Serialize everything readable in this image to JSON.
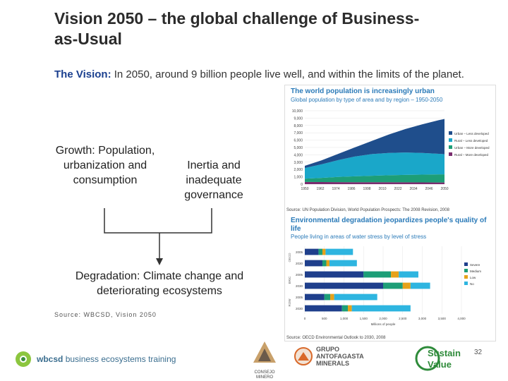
{
  "title": "Vision 2050 – the global challenge of Business-as-Usual",
  "vision": {
    "lead": "The Vision:",
    "text": " In 2050, around 9 billion people live well, and within the limits of the planet."
  },
  "diagram": {
    "growth": "Growth: Population, urbanization and consumption",
    "inertia": "Inertia and inadequate governance",
    "degradation": "Degradation: Climate change and deteriorating ecosystems"
  },
  "source_left": "Source: WBCSD, Vision 2050",
  "chart_urban": {
    "title": "The world population is increasingly urban",
    "subtitle": "Global population by type of area and by region – 1950-2050",
    "y_ticks": [
      "10,000",
      "9,000",
      "8,000",
      "7,000",
      "6,000",
      "5,000",
      "4,000",
      "3,000",
      "2,000",
      "1,000",
      "0"
    ],
    "x_ticks": [
      "1950",
      "1962",
      "1974",
      "1986",
      "1998",
      "2010",
      "2022",
      "2034",
      "2046",
      "2050"
    ],
    "legend": [
      "Urban – Less developed",
      "Rural – Less developed",
      "Urban – More developed",
      "Rural – More developed"
    ],
    "colors": [
      "#1f4e8c",
      "#1aa7c9",
      "#1d9e77",
      "#7a2c6e"
    ],
    "source": "Source: UN Population Division, World Population Prospects: The 2008 Revision, 2008"
  },
  "chart_water": {
    "title": "Environmental degradation jeopardizes people's quality of life",
    "subtitle": "People living in areas of water stress by level of stress",
    "group_labels": [
      "OECD",
      "BRIC",
      "ROW"
    ],
    "row_years": [
      "2005",
      "2030",
      "2005",
      "2030",
      "2005",
      "2030"
    ],
    "x_ticks": [
      "0",
      "500",
      "1,000",
      "1,500",
      "2,000",
      "2,500",
      "3,000",
      "3,500",
      "4,000"
    ],
    "xlabel": "Millions of people",
    "legend": [
      "Severe",
      "Medium",
      "Low",
      "No"
    ],
    "colors": [
      "#1f3f8c",
      "#1d9e77",
      "#e6a21a",
      "#2eb5e0"
    ],
    "source": "Source: OECD Environmental Outlook to 2030, 2008"
  },
  "footer": {
    "wbcsd": "wbcsd",
    "training": "business ecosystems training",
    "consejo": "CONSEJO MINERO",
    "antofagasta": "GRUPO ANTOFAGASTA MINERALS",
    "sustain_a": "Sustain",
    "sustain_b": "Value",
    "page": "32"
  },
  "chart_data": [
    {
      "type": "area",
      "title": "The world population is increasingly urban",
      "subtitle": "Global population by type of area and by region – 1950-2050",
      "x": [
        1950,
        1962,
        1974,
        1986,
        1998,
        2010,
        2022,
        2034,
        2046,
        2050
      ],
      "series": [
        {
          "name": "Rural – More developed",
          "values": [
            300,
            290,
            280,
            270,
            265,
            260,
            250,
            240,
            230,
            225
          ]
        },
        {
          "name": "Urban – More developed",
          "values": [
            450,
            560,
            700,
            800,
            880,
            950,
            1010,
            1060,
            1100,
            1110
          ]
        },
        {
          "name": "Rural – Less developed",
          "values": [
            1450,
            1850,
            2300,
            2700,
            2950,
            3050,
            3050,
            2950,
            2800,
            2750
          ]
        },
        {
          "name": "Urban – Less developed",
          "values": [
            300,
            550,
            850,
            1250,
            1800,
            2500,
            3200,
            3900,
            4600,
            4800
          ]
        }
      ],
      "ylim": [
        0,
        10000
      ]
    },
    {
      "type": "bar",
      "title": "Environmental degradation jeopardizes people's quality of life",
      "subtitle": "People living in areas of water stress by level of stress",
      "categories": [
        "OECD 2005",
        "OECD 2030",
        "BRIC 2005",
        "BRIC 2030",
        "ROW 2005",
        "ROW 2030"
      ],
      "series": [
        {
          "name": "Severe",
          "values": [
            350,
            450,
            1500,
            2000,
            500,
            950
          ]
        },
        {
          "name": "Medium",
          "values": [
            100,
            100,
            700,
            500,
            150,
            150
          ]
        },
        {
          "name": "Low",
          "values": [
            80,
            80,
            200,
            200,
            100,
            100
          ]
        },
        {
          "name": "No",
          "values": [
            700,
            700,
            500,
            500,
            1100,
            1500
          ]
        }
      ],
      "xlabel": "Millions of people",
      "xlim": [
        0,
        4000
      ]
    }
  ]
}
